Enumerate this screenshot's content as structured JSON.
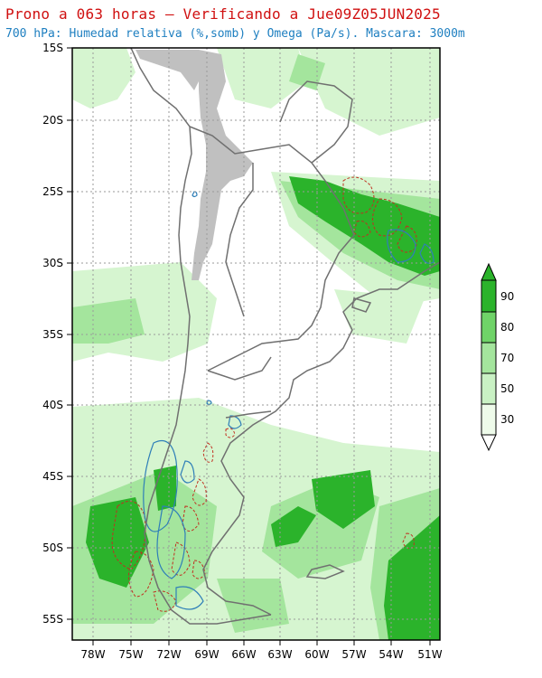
{
  "header": {
    "title": "Prono a 063 horas — Verificando a Jue09Z05JUN2025",
    "subtitle": "700 hPa: Humedad relativa (%,somb) y Omega (Pa/s). Mascara: 3000m"
  },
  "axes": {
    "lat_labels": [
      "15S",
      "20S",
      "25S",
      "30S",
      "35S",
      "40S",
      "45S",
      "50S",
      "55S"
    ],
    "lon_labels": [
      "78W",
      "75W",
      "72W",
      "69W",
      "66W",
      "63W",
      "60W",
      "57W",
      "54W",
      "51W"
    ]
  },
  "legend": {
    "labels": [
      "30",
      "50",
      "70",
      "80",
      "90"
    ],
    "colors": [
      "#eefbea",
      "#c9f1c4",
      "#a4e59d",
      "#6fd368",
      "#2bb32b"
    ]
  },
  "colors": {
    "humidity_light": "#d6f5d0",
    "humidity_mid": "#a4e59d",
    "humidity_dark": "#2bb32b",
    "mask": "#c0c0c0",
    "omega_positive": "#c03020",
    "omega_negative": "#2f7fb8",
    "borders": "#808080",
    "coast": "#707070"
  }
}
